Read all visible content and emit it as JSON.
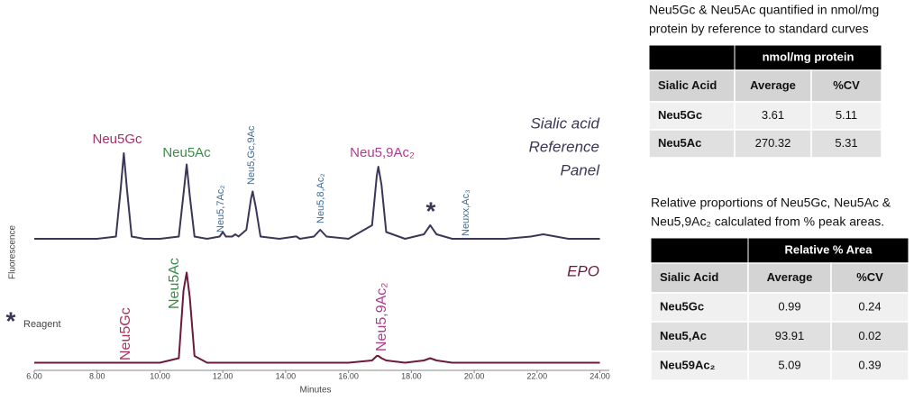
{
  "chart_data": {
    "type": "line",
    "x_label": "Minutes",
    "y_label": "Fluorescence",
    "x": [
      6.0,
      7.0,
      8.0,
      8.6,
      8.75,
      8.85,
      8.95,
      9.1,
      9.5,
      10.0,
      10.6,
      10.75,
      10.85,
      10.95,
      11.1,
      11.5,
      11.9,
      12.0,
      12.1,
      12.3,
      12.4,
      12.5,
      12.75,
      12.9,
      12.95,
      13.05,
      13.2,
      13.8,
      14.3,
      14.35,
      14.45,
      14.9,
      15.1,
      15.3,
      16.0,
      16.75,
      16.9,
      16.95,
      17.05,
      17.2,
      17.8,
      18.4,
      18.6,
      18.8,
      19.3,
      20.0,
      21.0,
      21.8,
      22.2,
      22.6,
      23.0,
      24.0
    ],
    "series": [
      {
        "name": [
          "Sialic acid",
          "Reference",
          "Panel"
        ],
        "color": "#3d3558",
        "values": [
          58,
          58,
          58,
          59,
          80,
          96,
          80,
          59,
          58,
          58,
          59,
          78,
          91,
          77,
          59,
          58,
          59,
          61,
          59,
          59,
          60,
          59,
          62,
          76,
          79,
          72,
          59,
          58,
          59,
          59,
          58,
          59,
          62,
          59,
          58,
          64,
          86,
          90,
          82,
          61,
          58,
          60,
          64,
          60,
          58,
          58,
          58,
          59,
          60,
          59,
          58,
          58
        ]
      },
      {
        "name": "EPO",
        "color": "#6b1a3c",
        "values": [
          3,
          3,
          3,
          3,
          3,
          3,
          3,
          3,
          3,
          3,
          5,
          35,
          43,
          32,
          6,
          3,
          3,
          3,
          3,
          3,
          3,
          3,
          3,
          3,
          3,
          3,
          3,
          3,
          3,
          3,
          3,
          3,
          3,
          3,
          3,
          4,
          6,
          6,
          5,
          4,
          3,
          4,
          5,
          4,
          3,
          3,
          3,
          3,
          3,
          3,
          3,
          3
        ]
      }
    ],
    "xlim": [
      6,
      24.3
    ],
    "ylim": [
      0,
      100
    ],
    "xticks": [
      {
        "value": 6,
        "label": "6.00"
      },
      {
        "value": 8,
        "label": "8.00"
      },
      {
        "value": 10,
        "label": "10.00"
      },
      {
        "value": 12,
        "label": "12.00"
      },
      {
        "value": 14,
        "label": "14.00"
      },
      {
        "value": 16,
        "label": "16.00"
      },
      {
        "value": 18,
        "label": "18.00"
      },
      {
        "value": 20,
        "label": "20.00"
      },
      {
        "value": 22,
        "label": "22.00"
      },
      {
        "value": 24,
        "label": "24.00"
      }
    ],
    "annotations": [
      "Neu5Gc",
      "Neu5Ac",
      "Neu5,7Ac₂",
      "Neu5,Gc,9Ac",
      "Neu5,8,Ac₂",
      "Neu5,9Ac₂",
      "*",
      "Neuxx,Ac₃",
      "Neu5Gc",
      "Neu5Ac",
      "Neu5,9Ac₂",
      "*",
      "Reagent"
    ]
  },
  "tables": [
    {
      "caption": [
        "Neu5Gc & Neu5Ac quantified in nmol/mg",
        "protein by reference to standard curves"
      ],
      "header": "nmol/mg protein",
      "columns": [
        "Sialic Acid",
        "Average",
        "%CV"
      ],
      "rows": [
        [
          "Neu5Gc",
          "3.61",
          "5.11"
        ],
        [
          "Neu5Ac",
          "270.32",
          "5.31"
        ]
      ]
    },
    {
      "caption": [
        "Relative proportions of Neu5Gc, Neu5Ac &",
        "Neu5,9Ac₂ calculated from % peak areas."
      ],
      "header": "Relative % Area",
      "columns": [
        "Sialic Acid",
        "Average",
        "%CV"
      ],
      "rows": [
        [
          "Neu5Gc",
          "0.99",
          "0.24"
        ],
        [
          "Neu5,Ac",
          "93.91",
          "0.02"
        ],
        [
          "Neu59Ac₂",
          "5.09",
          "0.39"
        ]
      ]
    }
  ]
}
